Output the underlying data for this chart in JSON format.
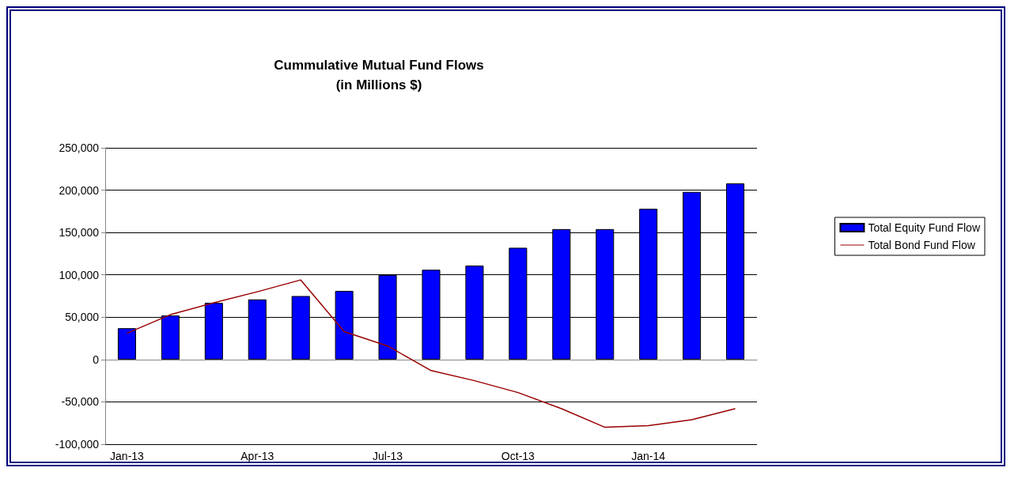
{
  "chart_data": {
    "type": "bar",
    "title": "Cummulative Mutual Fund Flows",
    "subtitle": "(in Millions $)",
    "categories": [
      "Jan-13",
      null,
      null,
      "Apr-13",
      null,
      null,
      "Jul-13",
      null,
      null,
      "Oct-13",
      null,
      null,
      "Jan-14",
      null,
      null
    ],
    "series": [
      {
        "name": "Total Equity Fund Flow",
        "color": "#0000ff",
        "values": [
          37000,
          52000,
          67000,
          71000,
          75000,
          81000,
          100000,
          106000,
          111000,
          132000,
          154000,
          154000,
          178000,
          198000,
          208000
        ]
      },
      {
        "name": "Total Bond Fund Flow",
        "type": "line",
        "color": "#990000",
        "values": [
          31000,
          53000,
          67000,
          80000,
          94000,
          33000,
          16000,
          -13000,
          -25000,
          -39000,
          -58000,
          -80000,
          -78000,
          -71000,
          -58000
        ]
      }
    ],
    "ylim": [
      -100000,
      250000
    ],
    "yticks": [
      {
        "value": -100000,
        "label": "-100,000"
      },
      {
        "value": -50000,
        "label": "-50,000"
      },
      0,
      {
        "value": 50000,
        "label": "50,000"
      },
      {
        "value": 100000,
        "label": "100,000"
      },
      {
        "value": 150000,
        "label": "150,000"
      },
      {
        "value": 200000,
        "label": "200,000"
      },
      {
        "value": 250000,
        "label": "250,000"
      }
    ],
    "grid": "y",
    "legend": "right",
    "marker": "none"
  }
}
